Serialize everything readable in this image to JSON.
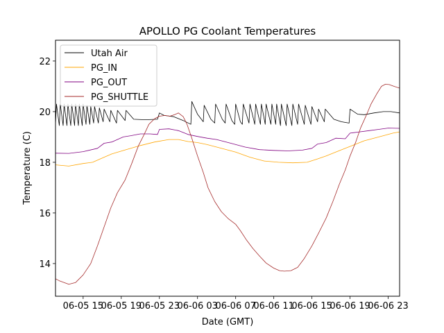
{
  "chart_data": {
    "type": "line",
    "title": "APOLLO PG Coolant Temperatures",
    "xlabel": "Date (GMT)",
    "ylabel": "Temperature (C)",
    "x_units": "hours since 06-05 12:00 GMT",
    "xlim": [
      0.1,
      36.2
    ],
    "ylim": [
      12.71,
      22.82
    ],
    "yticks": [
      14,
      16,
      18,
      20,
      22
    ],
    "ytick_labels": [
      "14",
      "16",
      "18",
      "20",
      "22"
    ],
    "xticks": [
      3,
      7,
      11,
      15,
      19,
      23,
      27,
      31,
      35
    ],
    "xtick_labels": [
      "06-05 15",
      "06-05 19",
      "06-05 23",
      "06-06 03",
      "06-06 07",
      "06-06 11",
      "06-06 15",
      "06-06 19",
      "06-06 23"
    ],
    "grid": false,
    "legend": {
      "position": "top-left"
    },
    "series": [
      {
        "name": "Utah Air",
        "color": "#000000",
        "points": [
          [
            0.1,
            19.5
          ],
          [
            0.2,
            20.3
          ],
          [
            0.5,
            19.45
          ],
          [
            0.6,
            20.3
          ],
          [
            0.9,
            19.45
          ],
          [
            1.0,
            20.3
          ],
          [
            1.3,
            19.45
          ],
          [
            1.4,
            20.3
          ],
          [
            1.7,
            19.45
          ],
          [
            1.8,
            20.3
          ],
          [
            2.1,
            19.45
          ],
          [
            2.2,
            20.3
          ],
          [
            2.5,
            19.45
          ],
          [
            2.6,
            20.3
          ],
          [
            2.9,
            19.45
          ],
          [
            3.0,
            20.3
          ],
          [
            3.3,
            19.5
          ],
          [
            3.4,
            20.25
          ],
          [
            3.7,
            19.5
          ],
          [
            3.8,
            20.2
          ],
          [
            4.1,
            19.55
          ],
          [
            4.2,
            20.2
          ],
          [
            4.6,
            19.55
          ],
          [
            4.7,
            20.15
          ],
          [
            5.1,
            19.6
          ],
          [
            5.2,
            20.1
          ],
          [
            5.8,
            19.6
          ],
          [
            5.9,
            20.05
          ],
          [
            6.5,
            19.55
          ],
          [
            6.6,
            20.05
          ],
          [
            7.4,
            19.65
          ],
          [
            7.5,
            20.05
          ],
          [
            8.3,
            19.7
          ],
          [
            9.5,
            19.68
          ],
          [
            10.8,
            19.7
          ],
          [
            11.0,
            19.95
          ],
          [
            11.5,
            19.85
          ],
          [
            12.5,
            19.8
          ],
          [
            13.5,
            19.65
          ],
          [
            14.3,
            19.5
          ],
          [
            14.4,
            20.4
          ],
          [
            15.0,
            19.9
          ],
          [
            15.6,
            19.6
          ],
          [
            15.7,
            20.25
          ],
          [
            16.4,
            19.7
          ],
          [
            16.8,
            19.55
          ],
          [
            16.9,
            20.3
          ],
          [
            17.6,
            19.7
          ],
          [
            17.9,
            19.55
          ],
          [
            18.0,
            20.3
          ],
          [
            18.6,
            19.65
          ],
          [
            18.9,
            19.5
          ],
          [
            19.0,
            20.3
          ],
          [
            19.5,
            19.6
          ],
          [
            19.7,
            19.5
          ],
          [
            19.8,
            20.3
          ],
          [
            20.4,
            19.55
          ],
          [
            20.5,
            20.3
          ],
          [
            21.0,
            19.5
          ],
          [
            21.1,
            20.3
          ],
          [
            21.6,
            19.5
          ],
          [
            21.7,
            20.3
          ],
          [
            22.1,
            19.5
          ],
          [
            22.2,
            20.3
          ],
          [
            22.7,
            19.5
          ],
          [
            22.8,
            20.3
          ],
          [
            23.2,
            19.5
          ],
          [
            23.3,
            20.3
          ],
          [
            23.7,
            19.45
          ],
          [
            23.8,
            20.3
          ],
          [
            24.3,
            19.45
          ],
          [
            24.4,
            20.3
          ],
          [
            24.9,
            19.45
          ],
          [
            25.0,
            20.3
          ],
          [
            25.5,
            19.5
          ],
          [
            25.6,
            20.3
          ],
          [
            26.2,
            19.5
          ],
          [
            26.3,
            20.25
          ],
          [
            26.9,
            19.5
          ],
          [
            27.0,
            20.2
          ],
          [
            27.6,
            19.6
          ],
          [
            27.7,
            20.1
          ],
          [
            28.3,
            19.6
          ],
          [
            28.4,
            20.1
          ],
          [
            29.3,
            19.7
          ],
          [
            30.1,
            19.6
          ],
          [
            30.9,
            19.55
          ],
          [
            31.0,
            20.1
          ],
          [
            31.8,
            19.9
          ],
          [
            32.5,
            19.88
          ],
          [
            33.5,
            19.95
          ],
          [
            34.5,
            20.0
          ],
          [
            35.3,
            20.0
          ],
          [
            36.2,
            19.95
          ]
        ]
      },
      {
        "name": "PG_IN",
        "color": "#ffa500",
        "points": [
          [
            0.1,
            17.9
          ],
          [
            1.5,
            17.85
          ],
          [
            3.0,
            17.95
          ],
          [
            4.0,
            18.0
          ],
          [
            5.2,
            18.2
          ],
          [
            6.0,
            18.33
          ],
          [
            7.5,
            18.5
          ],
          [
            9.0,
            18.66
          ],
          [
            10.5,
            18.8
          ],
          [
            12.0,
            18.9
          ],
          [
            13.0,
            18.9
          ],
          [
            14.0,
            18.82
          ],
          [
            15.0,
            18.78
          ],
          [
            16.0,
            18.7
          ],
          [
            17.5,
            18.55
          ],
          [
            19.0,
            18.4
          ],
          [
            20.5,
            18.2
          ],
          [
            22.0,
            18.05
          ],
          [
            23.5,
            18.0
          ],
          [
            25.0,
            17.98
          ],
          [
            26.5,
            18.0
          ],
          [
            27.5,
            18.12
          ],
          [
            28.5,
            18.25
          ],
          [
            29.5,
            18.4
          ],
          [
            30.5,
            18.55
          ],
          [
            31.5,
            18.7
          ],
          [
            32.5,
            18.85
          ],
          [
            33.5,
            18.95
          ],
          [
            34.5,
            19.05
          ],
          [
            35.5,
            19.15
          ],
          [
            36.2,
            19.2
          ]
        ]
      },
      {
        "name": "PG_OUT",
        "color": "#800080",
        "points": [
          [
            0.1,
            18.36
          ],
          [
            1.5,
            18.35
          ],
          [
            3.0,
            18.42
          ],
          [
            4.5,
            18.55
          ],
          [
            5.2,
            18.75
          ],
          [
            6.0,
            18.8
          ],
          [
            7.2,
            19.0
          ],
          [
            8.0,
            19.05
          ],
          [
            9.0,
            19.12
          ],
          [
            10.0,
            19.12
          ],
          [
            10.8,
            19.1
          ],
          [
            11.0,
            19.3
          ],
          [
            12.0,
            19.32
          ],
          [
            13.0,
            19.25
          ],
          [
            14.0,
            19.1
          ],
          [
            15.0,
            19.02
          ],
          [
            16.0,
            18.95
          ],
          [
            17.0,
            18.9
          ],
          [
            18.5,
            18.75
          ],
          [
            20.0,
            18.6
          ],
          [
            21.5,
            18.5
          ],
          [
            23.0,
            18.47
          ],
          [
            24.5,
            18.45
          ],
          [
            26.0,
            18.48
          ],
          [
            27.0,
            18.55
          ],
          [
            27.6,
            18.72
          ],
          [
            28.5,
            18.78
          ],
          [
            29.5,
            18.95
          ],
          [
            30.5,
            18.93
          ],
          [
            31.0,
            19.15
          ],
          [
            32.0,
            19.2
          ],
          [
            33.0,
            19.25
          ],
          [
            34.0,
            19.3
          ],
          [
            35.0,
            19.35
          ],
          [
            36.2,
            19.34
          ]
        ]
      },
      {
        "name": "PG_SHUTTLE",
        "color": "#a52a2a",
        "points": [
          [
            0.1,
            13.4
          ],
          [
            0.5,
            13.32
          ],
          [
            1.5,
            13.18
          ],
          [
            2.2,
            13.25
          ],
          [
            3.0,
            13.55
          ],
          [
            3.8,
            14.0
          ],
          [
            4.5,
            14.7
          ],
          [
            5.2,
            15.45
          ],
          [
            5.9,
            16.2
          ],
          [
            6.6,
            16.8
          ],
          [
            7.4,
            17.3
          ],
          [
            8.1,
            17.95
          ],
          [
            8.8,
            18.65
          ],
          [
            9.4,
            19.1
          ],
          [
            9.9,
            19.5
          ],
          [
            10.5,
            19.72
          ],
          [
            11.0,
            19.82
          ],
          [
            11.6,
            19.85
          ],
          [
            12.1,
            19.82
          ],
          [
            12.6,
            19.88
          ],
          [
            13.0,
            19.95
          ],
          [
            13.5,
            19.8
          ],
          [
            13.9,
            19.5
          ],
          [
            14.4,
            18.95
          ],
          [
            15.0,
            18.25
          ],
          [
            15.6,
            17.6
          ],
          [
            16.1,
            17.0
          ],
          [
            16.8,
            16.45
          ],
          [
            17.5,
            16.05
          ],
          [
            18.2,
            15.78
          ],
          [
            19.0,
            15.55
          ],
          [
            19.5,
            15.3
          ],
          [
            20.1,
            14.95
          ],
          [
            20.8,
            14.6
          ],
          [
            21.5,
            14.3
          ],
          [
            22.2,
            14.02
          ],
          [
            23.0,
            13.82
          ],
          [
            23.6,
            13.72
          ],
          [
            24.1,
            13.7
          ],
          [
            24.8,
            13.72
          ],
          [
            25.5,
            13.85
          ],
          [
            26.2,
            14.2
          ],
          [
            27.0,
            14.7
          ],
          [
            27.7,
            15.2
          ],
          [
            28.5,
            15.8
          ],
          [
            29.2,
            16.45
          ],
          [
            29.9,
            17.15
          ],
          [
            30.5,
            17.7
          ],
          [
            31.0,
            18.25
          ],
          [
            31.6,
            18.8
          ],
          [
            32.1,
            19.35
          ],
          [
            32.7,
            19.85
          ],
          [
            33.2,
            20.3
          ],
          [
            33.8,
            20.7
          ],
          [
            34.3,
            21.0
          ],
          [
            34.7,
            21.08
          ],
          [
            35.1,
            21.07
          ],
          [
            35.6,
            21.0
          ],
          [
            36.2,
            20.93
          ]
        ]
      }
    ]
  }
}
